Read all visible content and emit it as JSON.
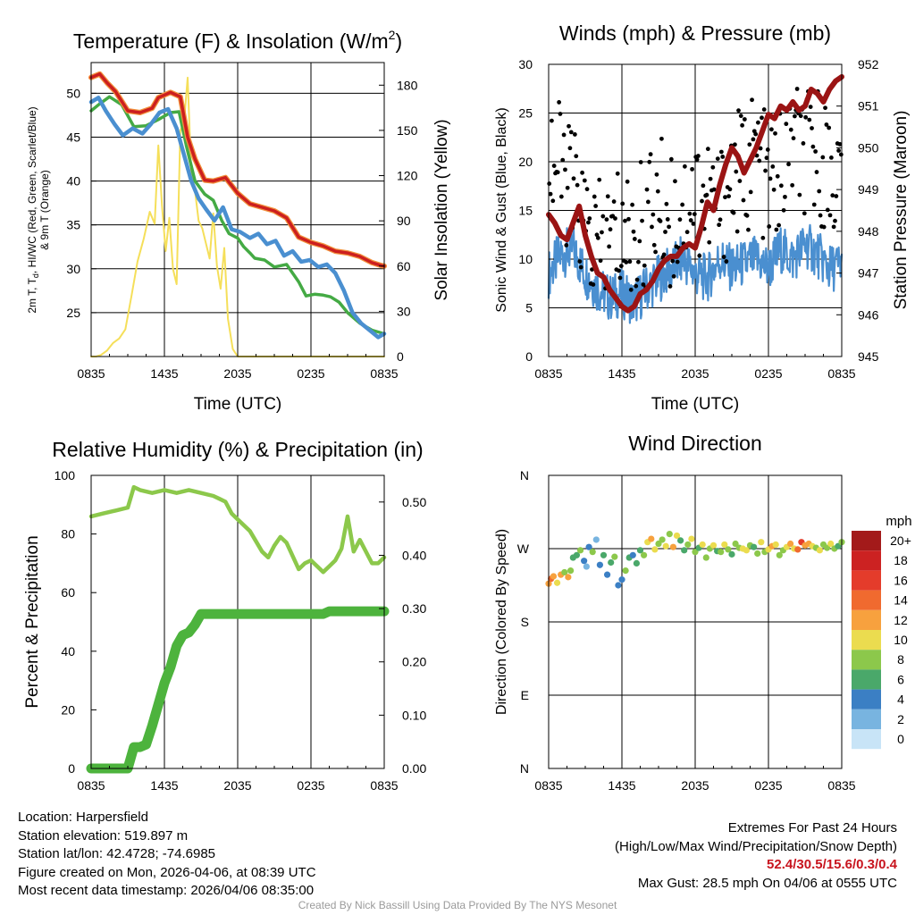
{
  "time_ticks": [
    "0835",
    "1435",
    "2035",
    "0235",
    "0835"
  ],
  "chart_data": [
    {
      "type": "line",
      "title": "Temperature (F) & Insolation (W/m²)",
      "title_main": "Temperature (F) & Insolation (W/m",
      "title_sup": "2",
      "title_end": ")",
      "xlabel": "Time (UTC)",
      "ylabel_line1": "2m T, T",
      "ylabel_sub": "d",
      "ylabel_line1_end": ", HI/WC (Red, Green, Scarlet/Blue)",
      "ylabel_line2": "& 9m T (Orange)",
      "ylabel_right": "Solar Insolation (Yellow)",
      "x_hours": [
        0,
        24
      ],
      "ylim": [
        20,
        53.5
      ],
      "y_ticks": [
        "25",
        "30",
        "35",
        "40",
        "45",
        "50"
      ],
      "ylim_right": [
        0,
        195
      ],
      "y_right_ticks": [
        "0",
        "30",
        "60",
        "90",
        "120",
        "150",
        "180"
      ],
      "colors": {
        "temp": "#cc1f1f",
        "temp9m": "#f2913c",
        "dewpoint": "#44aa44",
        "windchill": "#4a8fd0",
        "insolation": "#f5df5a"
      },
      "series": [
        {
          "name": "2m T",
          "x": [
            0,
            0.7,
            1.3,
            2.0,
            3.0,
            4.0,
            5.0,
            5.5,
            6.5,
            7.3,
            7.9,
            8.5,
            9.3,
            10.0,
            11.0,
            12.0,
            13.0,
            14.0,
            15.0,
            16.0,
            17.0,
            18.0,
            19.0,
            20.0,
            21.0,
            22.0,
            23.0,
            23.7,
            24.0
          ],
          "values": [
            51.8,
            52.2,
            51.2,
            50.2,
            48.0,
            47.8,
            48.3,
            49.5,
            50.1,
            49.6,
            45.0,
            42.5,
            40.1,
            40.0,
            40.4,
            38.6,
            37.4,
            37.0,
            36.6,
            35.8,
            33.6,
            33.0,
            32.6,
            32.0,
            31.8,
            31.4,
            30.7,
            30.4,
            30.3
          ]
        },
        {
          "name": "Dewpoint",
          "x": [
            0,
            0.7,
            1.5,
            2.5,
            3.5,
            4.5,
            5.5,
            6.5,
            7.2,
            7.8,
            8.5,
            9.3,
            10.0,
            10.7,
            11.3,
            12.0,
            12.5,
            13.0,
            13.4,
            14.2,
            15.0,
            16.0,
            17.0,
            17.6,
            18.3,
            19.0,
            19.6,
            20.3,
            21.0,
            22.0,
            23.0,
            24.0
          ],
          "values": [
            48.0,
            48.8,
            49.6,
            48.7,
            46.2,
            46.3,
            47.0,
            47.8,
            47.9,
            44.0,
            40.0,
            38.5,
            37.8,
            35.5,
            34.0,
            33.5,
            32.5,
            31.8,
            31.2,
            31.0,
            30.2,
            30.5,
            28.5,
            26.9,
            27.1,
            27.0,
            26.8,
            26.2,
            25.0,
            23.8,
            23.0,
            22.6
          ]
        },
        {
          "name": "Wind chill",
          "x": [
            0,
            0.6,
            1.2,
            1.9,
            2.6,
            3.4,
            4.2,
            4.9,
            5.6,
            6.3,
            7.0,
            7.6,
            8.2,
            8.8,
            9.4,
            10.1,
            10.8,
            11.5,
            12.2,
            13.0,
            13.7,
            14.4,
            15.1,
            15.8,
            16.5,
            17.2,
            17.9,
            18.6,
            19.3,
            20.0,
            20.7,
            21.4,
            22.1,
            22.8,
            23.5,
            24.0
          ],
          "values": [
            49.0,
            49.5,
            48.0,
            46.5,
            45.2,
            46.0,
            45.4,
            46.5,
            47.8,
            48.2,
            46.0,
            43.0,
            40.0,
            38.0,
            36.8,
            35.5,
            37.0,
            34.5,
            34.2,
            33.5,
            34.0,
            32.8,
            33.2,
            31.5,
            32.0,
            30.8,
            31.0,
            30.2,
            30.5,
            29.5,
            27.5,
            25.0,
            23.8,
            23.0,
            22.2,
            22.6
          ]
        },
        {
          "name": "Solar Insolation",
          "axis": "right",
          "x": [
            0,
            0.4,
            0.8,
            1.3,
            1.8,
            2.3,
            2.8,
            3.3,
            3.8,
            4.3,
            4.8,
            5.2,
            5.5,
            5.8,
            6.1,
            6.4,
            6.7,
            7.0,
            7.3,
            7.6,
            7.9,
            8.2,
            8.5,
            8.8,
            9.1,
            9.4,
            9.7,
            10.0,
            10.3,
            10.6,
            10.9,
            11.2,
            11.6,
            12.0,
            13.0,
            18.0,
            24.0
          ],
          "values": [
            0,
            0,
            1,
            4,
            9,
            12,
            18,
            40,
            63,
            78,
            96,
            88,
            140,
            100,
            70,
            92,
            58,
            48,
            150,
            155,
            185,
            120,
            110,
            90,
            85,
            75,
            65,
            95,
            60,
            45,
            72,
            25,
            5,
            0,
            0,
            0,
            0
          ]
        }
      ]
    },
    {
      "type": "scatter+line",
      "title": "Winds (mph) & Pressure (mb)",
      "xlabel": "Time (UTC)",
      "ylabel": "Sonic Wind & Gust (Blue, Black)",
      "ylabel_right": "Station Pressure (Maroon)",
      "ylim": [
        0,
        30
      ],
      "y_ticks": [
        "0",
        "5",
        "10",
        "15",
        "20",
        "25",
        "30"
      ],
      "ylim_right": [
        945,
        952
      ],
      "y_right_ticks": [
        "945",
        "946",
        "947",
        "948",
        "949",
        "950",
        "951",
        "952"
      ],
      "colors": {
        "wind": "#4a8fd0",
        "gust": "#000000",
        "pressure": "#9b1414"
      },
      "series": [
        {
          "name": "Sonic Wind",
          "x": [
            0,
            1,
            2,
            3,
            4,
            5,
            6,
            7,
            8,
            9,
            10,
            11,
            12,
            13,
            14,
            15,
            16,
            17,
            18,
            19,
            20,
            21,
            22,
            23,
            24
          ],
          "values": [
            8.5,
            10.5,
            11,
            8.5,
            7,
            6,
            6.5,
            5.5,
            7,
            8,
            9,
            10,
            8.5,
            8,
            10,
            9,
            9.5,
            10,
            9,
            11,
            10,
            11.5,
            10.5,
            9,
            9.5
          ]
        },
        {
          "name": "Gust",
          "x": [
            0,
            1,
            2,
            3,
            4,
            5,
            6,
            7,
            8,
            9,
            10,
            11,
            12,
            13,
            14,
            15,
            16,
            17,
            18,
            19,
            20,
            21,
            22,
            23,
            24
          ],
          "values": [
            21,
            19,
            17,
            13,
            11,
            12,
            13,
            12,
            14,
            16,
            14,
            15,
            17,
            16,
            15,
            18,
            19,
            21,
            17,
            19,
            22,
            20,
            21,
            19,
            18
          ]
        },
        {
          "name": "Station Pressure",
          "axis": "right",
          "x": [
            0,
            0.5,
            1.0,
            1.5,
            2.0,
            2.5,
            3.0,
            3.5,
            4.0,
            4.5,
            5.0,
            5.5,
            6.0,
            6.5,
            7.0,
            7.5,
            8.0,
            8.5,
            9.0,
            9.5,
            10.0,
            10.5,
            11.0,
            11.5,
            12.0,
            12.5,
            13.0,
            13.5,
            14.0,
            14.5,
            15.0,
            15.5,
            16.0,
            16.5,
            17.0,
            17.5,
            18.0,
            18.5,
            19.0,
            19.5,
            20.0,
            20.5,
            21.0,
            21.5,
            22.0,
            22.5,
            23.0,
            23.5,
            24.0
          ],
          "values": [
            948.4,
            948.2,
            947.9,
            947.8,
            948.2,
            948.6,
            947.9,
            947.4,
            947.0,
            946.9,
            946.6,
            946.4,
            946.2,
            946.1,
            946.2,
            946.5,
            946.6,
            946.8,
            947.1,
            947.3,
            947.4,
            947.4,
            947.6,
            947.7,
            947.6,
            948.1,
            948.7,
            948.5,
            949.1,
            949.6,
            950.0,
            949.8,
            949.4,
            949.7,
            950.0,
            950.4,
            950.8,
            950.7,
            951.0,
            950.9,
            951.1,
            950.9,
            951.0,
            951.4,
            951.3,
            951.1,
            951.4,
            951.6,
            951.7
          ]
        }
      ]
    },
    {
      "type": "line",
      "title": "Relative Humidity (%) & Precipitation (in)",
      "ylabel": "Percent & Precipitation",
      "ylim": [
        0,
        100
      ],
      "y_ticks": [
        "0",
        "20",
        "40",
        "60",
        "80",
        "100"
      ],
      "ylim_right": [
        0,
        0.55
      ],
      "y_right_ticks": [
        "0.00",
        "0.10",
        "0.20",
        "0.30",
        "0.40",
        "0.50"
      ],
      "colors": {
        "rh": "#8cc84b",
        "precip": "#4db33d"
      },
      "series": [
        {
          "name": "Relative Humidity",
          "x": [
            0,
            1,
            2,
            3,
            3.5,
            4,
            5,
            6,
            7,
            8,
            9,
            10,
            10.5,
            11,
            11.5,
            12,
            12.5,
            13,
            14,
            14.5,
            15,
            15.5,
            16,
            17,
            17.5,
            18,
            19,
            19.5,
            20,
            20.5,
            21,
            21.5,
            22,
            23,
            23.5,
            24
          ],
          "values": [
            86,
            87,
            88,
            89,
            96,
            95,
            94,
            95,
            94,
            95,
            94,
            93,
            92,
            91,
            87,
            85,
            83,
            81,
            74,
            72,
            76,
            79,
            77,
            68,
            70,
            71,
            67,
            69,
            71,
            75,
            86,
            74,
            78,
            70,
            70,
            72
          ]
        },
        {
          "name": "Precipitation",
          "axis": "right",
          "x": [
            0,
            1,
            2,
            3,
            3.5,
            4,
            4.5,
            5,
            5.5,
            6,
            6.5,
            7,
            7.5,
            8,
            8.5,
            9,
            10,
            11,
            12,
            13,
            14,
            15,
            16,
            17,
            18,
            19,
            19.5,
            20,
            21,
            22,
            23,
            24
          ],
          "values": [
            0,
            0,
            0,
            0,
            0.04,
            0.04,
            0.045,
            0.08,
            0.12,
            0.16,
            0.19,
            0.23,
            0.25,
            0.255,
            0.27,
            0.29,
            0.29,
            0.29,
            0.29,
            0.29,
            0.29,
            0.29,
            0.29,
            0.29,
            0.29,
            0.29,
            0.295,
            0.295,
            0.295,
            0.295,
            0.295,
            0.295
          ]
        }
      ]
    },
    {
      "type": "scatter",
      "title": "Wind Direction",
      "ylabel": "Direction (Colored By Speed)",
      "y_ticks": [
        "N",
        "E",
        "S",
        "W",
        "N"
      ],
      "y_tick_degrees": [
        0,
        90,
        180,
        270,
        360
      ],
      "legend_title": "mph",
      "legend_labels": [
        "20+",
        "18",
        "16",
        "14",
        "12",
        "10",
        "8",
        "6",
        "4",
        "2",
        "0"
      ],
      "legend_colors": [
        "#a31a1a",
        "#cc2222",
        "#e43c2b",
        "#f06a2f",
        "#f7a13e",
        "#ebdc4f",
        "#8cc84b",
        "#4aa86a",
        "#3b7fc4",
        "#78b4e0",
        "#c8e4f7"
      ],
      "series": [
        {
          "name": "Direction",
          "x": [
            0,
            0.2,
            0.4,
            0.7,
            1.0,
            1.3,
            1.6,
            1.8,
            2.0,
            2.3,
            2.6,
            2.9,
            3.1,
            3.3,
            3.6,
            3.9,
            4.2,
            4.5,
            4.8,
            5.1,
            5.4,
            5.7,
            6.0,
            6.3,
            6.6,
            6.9,
            7.2,
            7.5,
            7.8,
            8.1,
            8.4,
            8.7,
            9.0,
            9.3,
            9.6,
            9.9,
            10.2,
            10.5,
            10.8,
            11.1,
            11.4,
            11.7,
            12.0,
            12.3,
            12.6,
            12.9,
            13.2,
            13.5,
            13.8,
            14.1,
            14.4,
            14.7,
            15.0,
            15.3,
            15.6,
            15.9,
            16.2,
            16.5,
            16.8,
            17.1,
            17.4,
            17.7,
            18.0,
            18.3,
            18.6,
            18.9,
            19.2,
            19.5,
            19.8,
            20.1,
            20.4,
            20.7,
            21.0,
            21.3,
            21.6,
            21.9,
            22.2,
            22.5,
            22.8,
            23.1,
            23.4,
            23.7,
            24.0
          ],
          "values": [
            227,
            233,
            236,
            228,
            238,
            241,
            235,
            243,
            259,
            262,
            268,
            255,
            248,
            272,
            266,
            281,
            250,
            262,
            238,
            253,
            260,
            225,
            232,
            243,
            259,
            262,
            252,
            268,
            262,
            278,
            282,
            269,
            276,
            281,
            273,
            288,
            272,
            286,
            280,
            268,
            275,
            282,
            266,
            271,
            275,
            259,
            270,
            274,
            267,
            266,
            275,
            269,
            263,
            276,
            271,
            270,
            268,
            274,
            272,
            264,
            278,
            266,
            269,
            273,
            275,
            262,
            268,
            272,
            276,
            270,
            269,
            278,
            274,
            276,
            273,
            271,
            268,
            275,
            271,
            276,
            270,
            273,
            278
          ],
          "speeds": [
            11,
            13,
            12,
            9,
            11,
            8,
            12,
            7,
            6,
            5,
            8,
            3,
            2,
            4,
            7,
            2,
            3,
            6,
            4,
            6,
            7,
            3,
            4,
            7,
            5,
            3,
            6,
            5,
            8,
            10,
            12,
            9,
            7,
            8,
            10,
            8,
            11,
            9,
            6,
            5,
            7,
            9,
            8,
            6,
            9,
            7,
            8,
            10,
            6,
            7,
            9,
            8,
            6,
            7,
            8,
            9,
            10,
            7,
            6,
            8,
            9,
            7,
            10,
            11,
            9,
            8,
            7,
            10,
            12,
            10,
            14,
            16,
            12,
            11,
            9,
            8,
            10,
            8,
            7,
            9,
            8,
            6,
            7
          ]
        }
      ]
    }
  ],
  "info": {
    "location": "Location: Harpersfield",
    "elevation": "Station elevation: 519.897 m",
    "latlon": "Station lat/lon: 42.4728; -74.6985",
    "created": "Figure created on Mon, 2026-04-06, at 08:39 UTC",
    "recent": "Most recent data timestamp: 2026/04/06 08:35:00",
    "extremes_title": "Extremes For Past 24 Hours",
    "extremes_desc": "(High/Low/Max Wind/Precipitation/Snow Depth)",
    "extremes_values": "52.4/30.5/15.6/0.3/0.4",
    "max_gust": "Max Gust: 28.5 mph On 04/06 at 0555 UTC",
    "credit": "Created By Nick Bassill Using Data Provided By The NYS Mesonet"
  }
}
